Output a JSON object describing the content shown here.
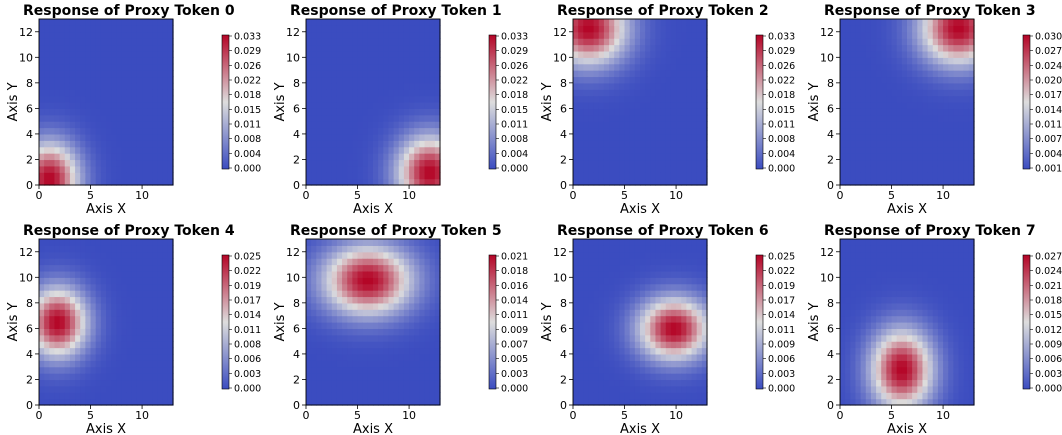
{
  "chart_data": [
    {
      "type": "heatmap",
      "title": "Response of Proxy Token 0",
      "xlabel": "Axis X",
      "ylabel": "Axis Y",
      "xlim": [
        0,
        13
      ],
      "ylim": [
        0,
        13
      ],
      "x_ticks": [
        "0",
        "5",
        "10"
      ],
      "y_ticks": [
        "0",
        "2",
        "4",
        "6",
        "8",
        "10",
        "12"
      ],
      "colormap": "coolwarm",
      "peaks": [
        {
          "x": 1,
          "y": 0.5,
          "sx": 2.0,
          "sy": 2.0,
          "w": 1.0
        }
      ],
      "colorbar_ticks": [
        "0.000",
        "0.004",
        "0.008",
        "0.011",
        "0.015",
        "0.018",
        "0.022",
        "0.026",
        "0.029",
        "0.033"
      ]
    },
    {
      "type": "heatmap",
      "title": "Response of Proxy Token 1",
      "xlabel": "Axis X",
      "ylabel": "Axis Y",
      "xlim": [
        0,
        13
      ],
      "ylim": [
        0,
        13
      ],
      "x_ticks": [
        "0",
        "5",
        "10"
      ],
      "y_ticks": [
        "0",
        "2",
        "4",
        "6",
        "8",
        "10",
        "12"
      ],
      "colormap": "coolwarm",
      "peaks": [
        {
          "x": 12,
          "y": 1,
          "sx": 2.2,
          "sy": 2.0,
          "w": 1.0
        }
      ],
      "colorbar_ticks": [
        "0.000",
        "0.004",
        "0.008",
        "0.011",
        "0.015",
        "0.018",
        "0.022",
        "0.026",
        "0.029",
        "0.033"
      ]
    },
    {
      "type": "heatmap",
      "title": "Response of Proxy Token 2",
      "xlabel": "Axis X",
      "ylabel": "Axis Y",
      "xlim": [
        0,
        13
      ],
      "ylim": [
        0,
        13
      ],
      "x_ticks": [
        "0",
        "5",
        "10"
      ],
      "y_ticks": [
        "0",
        "2",
        "4",
        "6",
        "8",
        "10",
        "12"
      ],
      "colormap": "coolwarm",
      "peaks": [
        {
          "x": 1.5,
          "y": 12.3,
          "sx": 2.6,
          "sy": 2.0,
          "w": 1.0
        }
      ],
      "colorbar_ticks": [
        "0.000",
        "0.004",
        "0.008",
        "0.011",
        "0.015",
        "0.018",
        "0.022",
        "0.026",
        "0.029",
        "0.033"
      ]
    },
    {
      "type": "heatmap",
      "title": "Response of Proxy Token 3",
      "xlabel": "Axis X",
      "ylabel": "Axis Y",
      "xlim": [
        0,
        13
      ],
      "ylim": [
        0,
        13
      ],
      "x_ticks": [
        "0",
        "5",
        "10"
      ],
      "y_ticks": [
        "0",
        "2",
        "4",
        "6",
        "8",
        "10",
        "12"
      ],
      "colormap": "coolwarm",
      "peaks": [
        {
          "x": 11.5,
          "y": 12.3,
          "sx": 2.6,
          "sy": 2.0,
          "w": 1.0
        }
      ],
      "colorbar_ticks": [
        "0.001",
        "0.004",
        "0.007",
        "0.011",
        "0.014",
        "0.017",
        "0.020",
        "0.024",
        "0.027",
        "0.030"
      ]
    },
    {
      "type": "heatmap",
      "title": "Response of Proxy Token 4",
      "xlabel": "Axis X",
      "ylabel": "Axis Y",
      "xlim": [
        0,
        13
      ],
      "ylim": [
        0,
        13
      ],
      "x_ticks": [
        "0",
        "5",
        "10"
      ],
      "y_ticks": [
        "0",
        "2",
        "4",
        "6",
        "8",
        "10",
        "12"
      ],
      "colormap": "coolwarm",
      "peaks": [
        {
          "x": 1.8,
          "y": 6.5,
          "sx": 2.0,
          "sy": 1.9,
          "w": 1.0
        }
      ],
      "colorbar_ticks": [
        "0.000",
        "0.003",
        "0.006",
        "0.008",
        "0.011",
        "0.014",
        "0.017",
        "0.019",
        "0.022",
        "0.025"
      ]
    },
    {
      "type": "heatmap",
      "title": "Response of Proxy Token 5",
      "xlabel": "Axis X",
      "ylabel": "Axis Y",
      "xlim": [
        0,
        13
      ],
      "ylim": [
        0,
        13
      ],
      "x_ticks": [
        "0",
        "5",
        "10"
      ],
      "y_ticks": [
        "0",
        "2",
        "4",
        "6",
        "8",
        "10",
        "12"
      ],
      "colormap": "coolwarm",
      "peaks": [
        {
          "x": 6,
          "y": 9.8,
          "sx": 3.0,
          "sy": 1.9,
          "w": 1.0
        }
      ],
      "colorbar_ticks": [
        "0.000",
        "0.003",
        "0.005",
        "0.007",
        "0.009",
        "0.011",
        "0.014",
        "0.016",
        "0.018",
        "0.021"
      ]
    },
    {
      "type": "heatmap",
      "title": "Response of Proxy Token 6",
      "xlabel": "Axis X",
      "ylabel": "Axis Y",
      "xlim": [
        0,
        13
      ],
      "ylim": [
        0,
        13
      ],
      "x_ticks": [
        "0",
        "5",
        "10"
      ],
      "y_ticks": [
        "0",
        "2",
        "4",
        "6",
        "8",
        "10",
        "12"
      ],
      "colormap": "coolwarm",
      "peaks": [
        {
          "x": 9.8,
          "y": 6,
          "sx": 2.4,
          "sy": 1.7,
          "w": 1.0
        }
      ],
      "colorbar_ticks": [
        "0.000",
        "0.003",
        "0.006",
        "0.009",
        "0.011",
        "0.014",
        "0.017",
        "0.019",
        "0.022",
        "0.025"
      ]
    },
    {
      "type": "heatmap",
      "title": "Response of Proxy Token 7",
      "xlabel": "Axis X",
      "ylabel": "Axis Y",
      "xlim": [
        0,
        13
      ],
      "ylim": [
        0,
        13
      ],
      "x_ticks": [
        "0",
        "5",
        "10"
      ],
      "y_ticks": [
        "0",
        "2",
        "4",
        "6",
        "8",
        "10",
        "12"
      ],
      "colormap": "coolwarm",
      "peaks": [
        {
          "x": 6,
          "y": 2.8,
          "sx": 2.1,
          "sy": 2.2,
          "w": 1.0
        }
      ],
      "colorbar_ticks": [
        "0.000",
        "0.003",
        "0.006",
        "0.009",
        "0.012",
        "0.015",
        "0.018",
        "0.021",
        "0.024",
        "0.027"
      ]
    }
  ]
}
